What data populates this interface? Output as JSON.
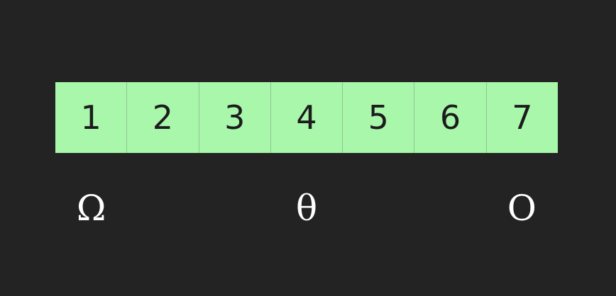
{
  "cells": [
    "1",
    "2",
    "3",
    "4",
    "5",
    "6",
    "7"
  ],
  "symbols": [
    "Ω",
    "",
    "",
    "θ",
    "",
    "",
    "O"
  ],
  "colors": {
    "background": "#232323",
    "cell_fill": "#a8f7ab",
    "cell_text": "#1c1c1c",
    "symbol_text": "#ffffff"
  }
}
